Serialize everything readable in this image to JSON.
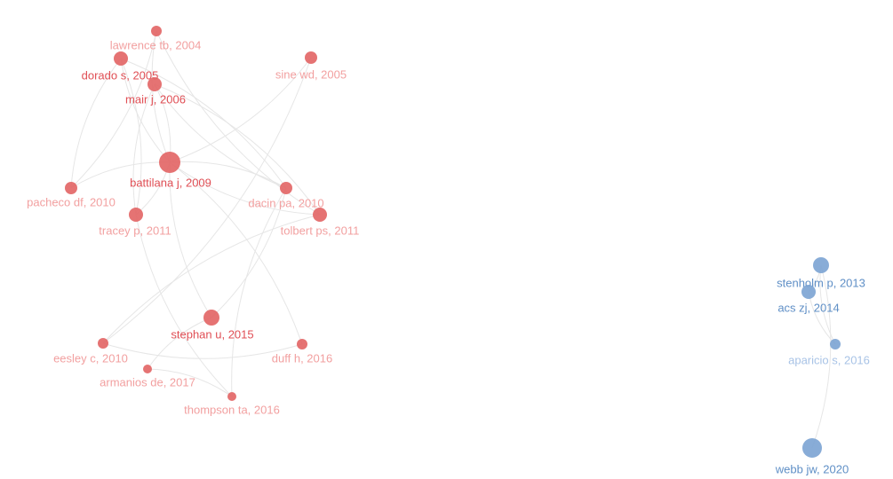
{
  "nodes": [
    {
      "label": "lawrence tb, 2004"
    },
    {
      "label": "dorado s, 2005"
    },
    {
      "label": "mair j, 2006"
    },
    {
      "label": "sine wd, 2005"
    },
    {
      "label": "battilana j, 2009"
    },
    {
      "label": "pacheco df, 2010"
    },
    {
      "label": "dacin pa, 2010"
    },
    {
      "label": "tracey p, 2011"
    },
    {
      "label": "tolbert ps, 2011"
    },
    {
      "label": "stephan u, 2015"
    },
    {
      "label": "eesley c, 2010"
    },
    {
      "label": "duff h, 2016"
    },
    {
      "label": "armanios de, 2017"
    },
    {
      "label": "thompson ta, 2016"
    },
    {
      "label": "stenholm p, 2013"
    },
    {
      "label": "acs zj, 2014"
    },
    {
      "label": "aparicio s, 2016"
    },
    {
      "label": "webb jw, 2020"
    }
  ]
}
